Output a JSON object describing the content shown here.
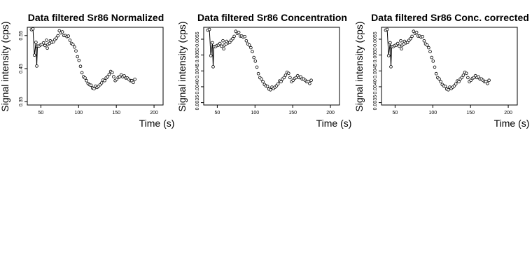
{
  "chart_data": [
    {
      "type": "scatter",
      "title": "Data filtered Sr86 Normalized",
      "xlabel": "Time (s)",
      "ylabel": "Signal intensity (cps)",
      "xlim": [
        32,
        212
      ],
      "ylim": [
        0.34,
        0.575
      ],
      "xticks": [
        50,
        100,
        150,
        200
      ],
      "xtick_labels": [
        "50",
        "100",
        "150",
        "200"
      ],
      "yticks": [
        0.35,
        0.45,
        0.55
      ],
      "ytick_labels": [
        "0.35",
        "0.45",
        "0.55"
      ],
      "grid": false,
      "line_through_points": true,
      "series": [
        {
          "values": [
            0.5679,
            0.5702,
            0.4907,
            0.5295,
            0.4577,
            0.5183,
            0.5183,
            0.5215,
            0.5231,
            0.5279,
            0.52,
            0.5358,
            0.512,
            0.5231,
            0.5263,
            0.5342,
            0.5295,
            0.5311,
            0.5374,
            0.5422,
            0.5493,
            0.5644,
            0.5581,
            0.5613,
            0.5501,
            0.5501,
            0.5469,
            0.5485,
            0.5358,
            0.5263,
            0.5231,
            0.5152,
            0.5034,
            0.486,
            0.4749,
            0.457,
            0.4375,
            0.4256,
            0.4217,
            0.4137,
            0.405,
            0.4011,
            0.3996,
            0.3915,
            0.3892,
            0.3971,
            0.3931,
            0.3971,
            0.4011,
            0.4067,
            0.4154,
            0.4137,
            0.4217,
            0.4256,
            0.4328,
            0.4414,
            0.4383,
            0.4256,
            0.4137,
            0.4177,
            0.4232,
            0.4256,
            0.4311,
            0.4256,
            0.428,
            0.4217,
            0.4217,
            0.4177,
            0.4137,
            0.4137,
            0.4082,
            0.4177
          ]
        }
      ]
    },
    {
      "type": "scatter",
      "title": "Data filtered Sr86 Concentration",
      "xlabel": "Time (s)",
      "ylabel": "Signal intensity (cps)",
      "xlim": [
        32,
        212
      ],
      "ylim": [
        0.003425,
        0.005875
      ],
      "xticks": [
        50,
        100,
        150,
        200
      ],
      "xtick_labels": [
        "50",
        "100",
        "150",
        "200"
      ],
      "yticks": [
        0.0035,
        0.004,
        0.0045,
        0.005,
        0.0055
      ],
      "ytick_labels": [
        "0.0035",
        "0.0040",
        "0.0045",
        "0.0050",
        "0.0055"
      ],
      "grid": false,
      "line_through_points": true,
      "series": [
        {
          "values": [
            0.005784,
            0.005809,
            0.004981,
            0.00539,
            0.004631,
            0.005266,
            0.005266,
            0.005299,
            0.005315,
            0.005365,
            0.005282,
            0.005449,
            0.005198,
            0.005315,
            0.005349,
            0.005432,
            0.005382,
            0.005399,
            0.005465,
            0.005515,
            0.00559,
            0.005749,
            0.005683,
            0.005716,
            0.005599,
            0.005599,
            0.005566,
            0.005582,
            0.005449,
            0.005349,
            0.005315,
            0.005232,
            0.005107,
            0.004924,
            0.004807,
            0.004619,
            0.004414,
            0.004288,
            0.004247,
            0.004162,
            0.00407,
            0.00403,
            0.004014,
            0.003928,
            0.003905,
            0.003988,
            0.003946,
            0.003988,
            0.00403,
            0.004089,
            0.004181,
            0.004162,
            0.004247,
            0.004288,
            0.004364,
            0.004455,
            0.004422,
            0.004288,
            0.004162,
            0.004205,
            0.004263,
            0.004288,
            0.004347,
            0.004288,
            0.004313,
            0.004247,
            0.004247,
            0.004205,
            0.004162,
            0.004162,
            0.004104,
            0.004205
          ]
        }
      ]
    },
    {
      "type": "scatter",
      "title": "Data filtered Sr86 Conc. corrected",
      "xlabel": "Time (s)",
      "ylabel": "Signal intensity (cps)",
      "xlim": [
        32,
        212
      ],
      "ylim": [
        0.003425,
        0.005875
      ],
      "xticks": [
        50,
        100,
        150,
        200
      ],
      "xtick_labels": [
        "50",
        "100",
        "150",
        "200"
      ],
      "yticks": [
        0.0035,
        0.004,
        0.0045,
        0.005,
        0.0055
      ],
      "ytick_labels": [
        "0.0035",
        "0.0040",
        "0.0045",
        "0.0050",
        "0.0055"
      ],
      "grid": false,
      "line_through_points": true,
      "series": [
        {
          "values": [
            0.005784,
            0.005809,
            0.004981,
            0.00539,
            0.004631,
            0.005266,
            0.005266,
            0.005299,
            0.005315,
            0.005365,
            0.005282,
            0.005449,
            0.005198,
            0.005315,
            0.005349,
            0.005432,
            0.005382,
            0.005399,
            0.005465,
            0.005515,
            0.00559,
            0.005749,
            0.005683,
            0.005716,
            0.005599,
            0.005599,
            0.005566,
            0.005582,
            0.005449,
            0.005349,
            0.005315,
            0.005232,
            0.005107,
            0.004924,
            0.004807,
            0.004619,
            0.004414,
            0.004288,
            0.004247,
            0.004162,
            0.00407,
            0.00403,
            0.004014,
            0.003928,
            0.003905,
            0.003988,
            0.003946,
            0.003988,
            0.00403,
            0.004089,
            0.004181,
            0.004162,
            0.004247,
            0.004288,
            0.004364,
            0.004455,
            0.004422,
            0.004288,
            0.004162,
            0.004205,
            0.004263,
            0.004288,
            0.004347,
            0.004288,
            0.004313,
            0.004247,
            0.004247,
            0.004205,
            0.004162,
            0.004162,
            0.004104,
            0.004205
          ]
        }
      ]
    }
  ],
  "shared_x": [
    37.5,
    39.5,
    41.5,
    43.5,
    44.5,
    45.5,
    47.5,
    49.5,
    51.5,
    53.5,
    55.5,
    57.5,
    58.5,
    59.5,
    61.5,
    62.5,
    64.5,
    66.5,
    68.5,
    70.5,
    72.5,
    74.5,
    76.5,
    78.5,
    80.5,
    82.5,
    84.5,
    86.5,
    88.5,
    90.5,
    92.5,
    94.5,
    96.5,
    98.5,
    100.5,
    102.5,
    104.5,
    106.5,
    108.5,
    110.5,
    112.5,
    114.5,
    116.5,
    118.5,
    120.5,
    122.5,
    124.5,
    126.5,
    128.5,
    130.5,
    132.5,
    134.5,
    136.5,
    138.5,
    140.5,
    142.5,
    144.5,
    146.5,
    148.5,
    150.5,
    152.5,
    154.5,
    156.5,
    158.5,
    160.5,
    162.5,
    164.5,
    166.5,
    168.5,
    170.5,
    172.5,
    174.5
  ]
}
